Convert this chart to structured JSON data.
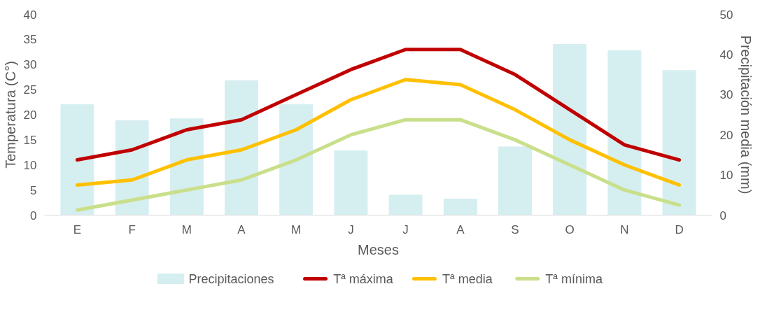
{
  "chart_data": {
    "type": "bar",
    "xlabel": "Meses",
    "ylabel": "Temperatura (C°)",
    "y2label": "Precipitación media (mm)",
    "categories": [
      "E",
      "F",
      "M",
      "A",
      "M",
      "J",
      "J",
      "A",
      "S",
      "O",
      "N",
      "D"
    ],
    "series": [
      {
        "name": "Precipitaciones",
        "axis": "y2",
        "color": "#d5eef0",
        "values": [
          27.5,
          23.5,
          24,
          33.5,
          27.5,
          16,
          5,
          4,
          17,
          42.5,
          41,
          36
        ]
      },
      {
        "name": "Tª máxima",
        "type": "line",
        "color": "#c00000",
        "values": [
          11,
          13,
          17,
          19,
          24,
          29,
          33,
          33,
          28,
          21,
          14,
          11
        ]
      },
      {
        "name": "Tª media",
        "type": "line",
        "color": "#ffc000",
        "values": [
          6,
          7,
          11,
          13,
          17,
          23,
          27,
          26,
          21,
          15,
          10,
          6
        ]
      },
      {
        "name": "Tª mínima",
        "type": "line",
        "color": "#c9df8a",
        "values": [
          1,
          3,
          5,
          7,
          11,
          16,
          19,
          19,
          15,
          10,
          5,
          2
        ]
      }
    ],
    "ylim": [
      0,
      40
    ],
    "yticks": [
      0,
      5,
      10,
      15,
      20,
      25,
      30,
      35,
      40
    ],
    "y2lim": [
      0,
      50
    ],
    "y2ticks": [
      0,
      10,
      20,
      30,
      40,
      50
    ],
    "grid": false,
    "legend": "bottom"
  }
}
